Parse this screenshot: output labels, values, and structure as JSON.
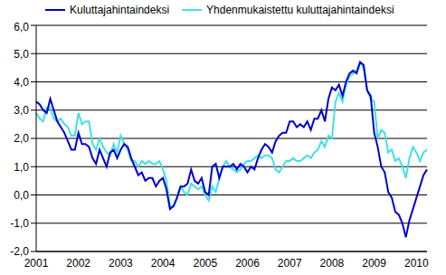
{
  "chart_data": {
    "type": "line",
    "legend": "top",
    "grid": true,
    "categories": [
      "2001",
      null,
      null,
      null,
      null,
      null,
      null,
      null,
      null,
      null,
      null,
      null,
      "2002",
      null,
      null,
      null,
      null,
      null,
      null,
      null,
      null,
      null,
      null,
      null,
      "2003",
      null,
      null,
      null,
      null,
      null,
      null,
      null,
      null,
      null,
      null,
      null,
      "2004",
      null,
      null,
      null,
      null,
      null,
      null,
      null,
      null,
      null,
      null,
      null,
      "2005",
      null,
      null,
      null,
      null,
      null,
      null,
      null,
      null,
      null,
      null,
      null,
      "2006",
      null,
      null,
      null,
      null,
      null,
      null,
      null,
      null,
      null,
      null,
      null,
      "2007",
      null,
      null,
      null,
      null,
      null,
      null,
      null,
      null,
      null,
      null,
      null,
      "2008",
      null,
      null,
      null,
      null,
      null,
      null,
      null,
      null,
      null,
      null,
      null,
      "2009",
      null,
      null,
      null,
      null,
      null,
      null,
      null,
      null,
      null,
      null,
      null,
      "2010",
      null,
      null,
      null
    ],
    "ylim": [
      -2,
      6
    ],
    "yticks": [
      {
        "value": -2,
        "label": "-2,0"
      },
      {
        "value": -1,
        "label": "-1,0"
      },
      {
        "value": 0,
        "label": "0,0"
      },
      {
        "value": 1,
        "label": "1,0"
      },
      {
        "value": 2,
        "label": "2,0"
      },
      {
        "value": 3,
        "label": "3,0"
      },
      {
        "value": 4,
        "label": "4,0"
      },
      {
        "value": 5,
        "label": "5,0"
      },
      {
        "value": 6,
        "label": "6,0"
      }
    ],
    "series": [
      {
        "name": "Kuluttajahintaindeksi",
        "color": "#0000d0",
        "values": [
          3.3,
          3.2,
          3.0,
          2.9,
          3.4,
          3.0,
          2.6,
          2.4,
          2.2,
          1.9,
          1.6,
          1.6,
          2.2,
          1.8,
          1.8,
          1.7,
          1.3,
          1.1,
          1.6,
          1.3,
          1.0,
          1.5,
          1.6,
          1.3,
          1.6,
          1.8,
          1.7,
          1.3,
          1.0,
          0.7,
          0.8,
          0.5,
          0.6,
          0.6,
          0.3,
          0.5,
          0.6,
          0.2,
          -0.5,
          -0.4,
          -0.1,
          0.3,
          0.3,
          0.4,
          0.9,
          0.5,
          0.4,
          0.6,
          0.1,
          0.0,
          1.0,
          1.1,
          0.6,
          1.0,
          1.0,
          1.0,
          1.1,
          0.9,
          1.1,
          1.0,
          0.8,
          1.0,
          0.9,
          1.3,
          1.6,
          1.8,
          1.7,
          1.5,
          1.9,
          2.1,
          2.2,
          2.2,
          2.6,
          2.6,
          2.4,
          2.5,
          2.4,
          2.6,
          2.3,
          2.7,
          2.7,
          3.0,
          2.6,
          3.4,
          3.8,
          3.7,
          3.9,
          3.5,
          4.0,
          4.3,
          4.4,
          4.3,
          4.7,
          4.6,
          3.7,
          3.5,
          2.2,
          1.7,
          1.0,
          0.8,
          0.1,
          -0.1,
          -0.6,
          -0.7,
          -1.0,
          -1.5,
          -0.9,
          -0.5,
          -0.1,
          0.3,
          0.7,
          0.9
        ]
      },
      {
        "name": "Yhdenmukaistettu kuluttajahintaindeksi",
        "color": "#40e0e8",
        "values": [
          2.9,
          2.7,
          2.6,
          3.1,
          3.1,
          2.7,
          2.6,
          2.7,
          2.5,
          2.4,
          2.1,
          2.1,
          2.9,
          2.5,
          2.6,
          2.6,
          1.8,
          1.6,
          2.0,
          1.7,
          1.5,
          1.4,
          1.8,
          1.5,
          2.1,
          1.8,
          1.6,
          1.2,
          1.2,
          1.0,
          1.2,
          1.1,
          1.2,
          1.1,
          1.1,
          1.2,
          0.9,
          0.5,
          -0.4,
          -0.4,
          -0.1,
          0.3,
          0.1,
          0.0,
          0.4,
          0.3,
          0.2,
          0.3,
          0.0,
          -0.2,
          0.3,
          0.1,
          0.6,
          1.0,
          1.2,
          1.0,
          0.9,
          0.8,
          0.9,
          1.1,
          1.2,
          1.2,
          1.3,
          1.4,
          1.3,
          1.4,
          1.4,
          1.3,
          0.9,
          0.8,
          1.0,
          1.2,
          1.2,
          1.3,
          1.2,
          1.2,
          1.3,
          1.4,
          1.3,
          1.5,
          1.6,
          1.9,
          1.7,
          2.1,
          2.0,
          3.3,
          3.6,
          3.3,
          3.9,
          4.2,
          4.3,
          4.4,
          4.7,
          4.5,
          3.7,
          3.4,
          3.3,
          2.0,
          2.3,
          2.2,
          1.5,
          1.6,
          1.2,
          1.3,
          1.0,
          0.6,
          1.3,
          1.7,
          1.5,
          1.2,
          1.5,
          1.6
        ]
      }
    ]
  }
}
